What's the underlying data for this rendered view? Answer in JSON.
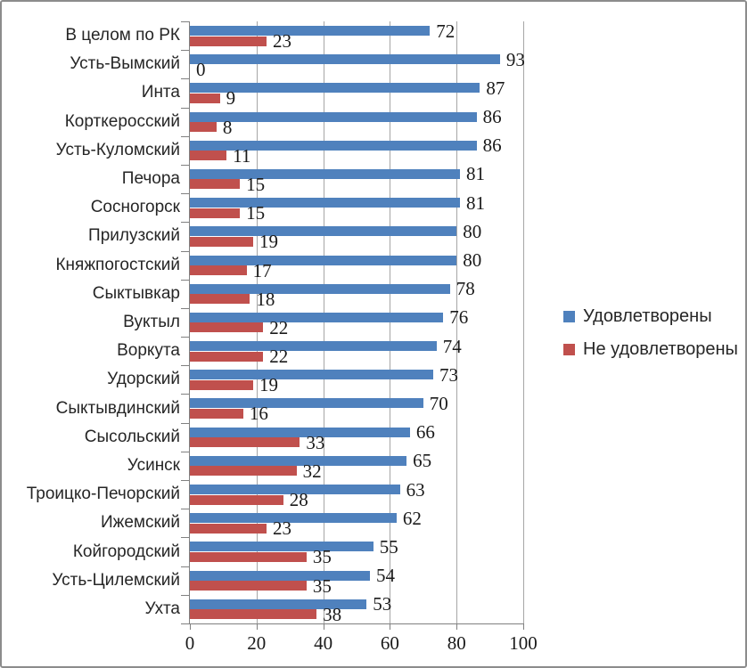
{
  "chart_data": {
    "type": "bar",
    "orientation": "horizontal",
    "title": "",
    "categories": [
      "В целом по РК",
      "Усть-Вымский",
      "Инта",
      "Корткеросский",
      "Усть-Куломский",
      "Печора",
      "Сосногорск",
      "Прилузский",
      "Княжпогостский",
      "Сыктывкар",
      "Вуктыл",
      "Воркута",
      "Удорский",
      "Сыктывдинский",
      "Сысольский",
      "Усинск",
      "Троицко-Печорский",
      "Ижемский",
      "Койгородский",
      "Усть-Цилемский",
      "Ухта"
    ],
    "series": [
      {
        "name": "Удовлетворены",
        "color": "#4F81BD",
        "values": [
          72,
          93,
          87,
          86,
          86,
          81,
          81,
          80,
          80,
          78,
          76,
          74,
          73,
          70,
          66,
          65,
          63,
          62,
          55,
          54,
          53
        ]
      },
      {
        "name": "Не удовлетворены",
        "color": "#C0504D",
        "values": [
          23,
          0,
          9,
          8,
          11,
          15,
          15,
          19,
          17,
          18,
          22,
          22,
          19,
          16,
          33,
          32,
          28,
          23,
          35,
          35,
          38
        ]
      }
    ],
    "xlim": [
      0,
      100
    ],
    "x_ticks": [
      0,
      20,
      40,
      60,
      80,
      100
    ],
    "grid": true,
    "value_labels": true,
    "legend_position": "right",
    "colors": {
      "gridline": "#A6A6A6",
      "axis": "#808080",
      "text": "#262626",
      "border": "#8C8C8C",
      "background": "#FFFFFF"
    }
  }
}
